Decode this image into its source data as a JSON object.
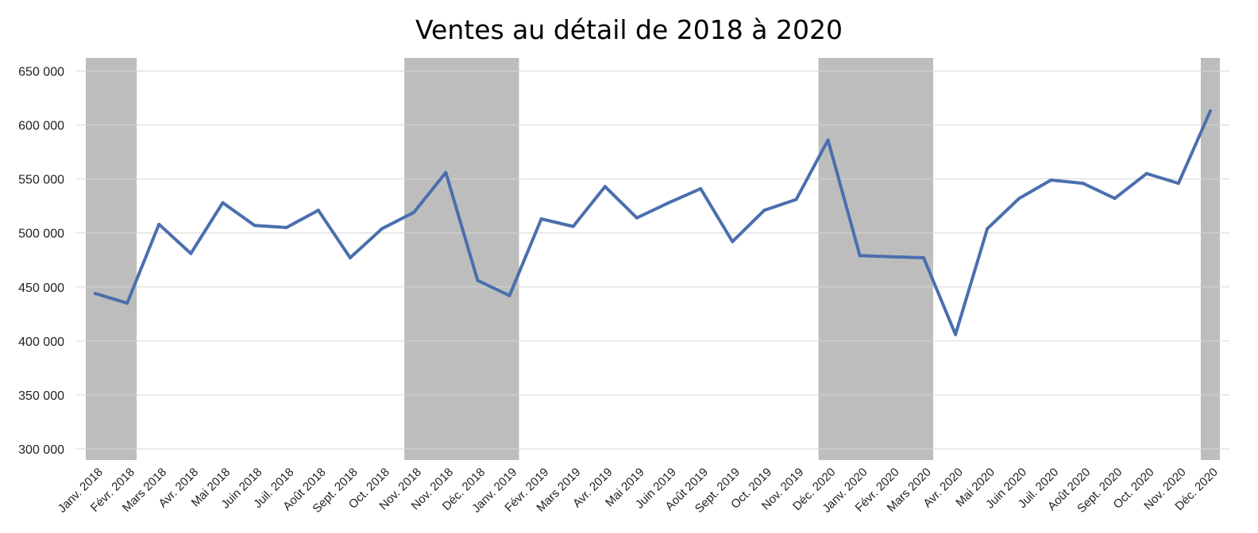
{
  "chart_data": {
    "type": "line",
    "title": "Ventes au détail de 2018 à 2020",
    "xlabel": "",
    "ylabel": "",
    "ylim": [
      300000,
      660000
    ],
    "y_ticks": [
      {
        "value": 300000,
        "label": "300 000"
      },
      {
        "value": 350000,
        "label": "350 000"
      },
      {
        "value": 400000,
        "label": "400 000"
      },
      {
        "value": 450000,
        "label": "450 000"
      },
      {
        "value": 500000,
        "label": "500 000"
      },
      {
        "value": 550000,
        "label": "550 000"
      },
      {
        "value": 600000,
        "label": "600 000"
      },
      {
        "value": 650000,
        "label": "650 000"
      }
    ],
    "grid": true,
    "legend": "none",
    "categories": [
      "Janv. 2018",
      "Févr. 2018",
      "Mars 2018",
      "Avr. 2018",
      "Mai 2018",
      "Juin 2018",
      "Juil. 2018",
      "Août 2018",
      "Sept. 2018",
      "Oct. 2018",
      "Nov. 2018",
      "Nov. 2018",
      "Déc. 2018",
      "Janv. 2019",
      "Févr. 2019",
      "Mars 2019",
      "Avr. 2019",
      "Mai 2019",
      "Juin 2019",
      "Août 2019",
      "Sept. 2019",
      "Oct. 2019",
      "Nov. 2019",
      "Déc. 2020",
      "Janv. 2020",
      "Févr. 2020",
      "Mars 2020",
      "Avr. 2020",
      "Mai 2020",
      "Juin 2020",
      "Juil. 2020",
      "Août 2020",
      "Sept. 2020",
      "Oct. 2020",
      "Nov. 2020",
      "Déc. 2020"
    ],
    "series": [
      {
        "values": [
          444000,
          435000,
          508000,
          481000,
          528000,
          507000,
          505000,
          521000,
          477000,
          504000,
          519000,
          556000,
          456000,
          442000,
          513000,
          506000,
          543000,
          514000,
          528000,
          541000,
          492000,
          521000,
          531000,
          586000,
          479000,
          478000,
          477000,
          406000,
          504000,
          532000,
          549000,
          546000,
          532000,
          555000,
          546000,
          613000
        ]
      }
    ],
    "shaded_ranges": [
      {
        "from": 0,
        "to": 1
      },
      {
        "from": 10,
        "to": 13
      },
      {
        "from": 23,
        "to": 26
      },
      {
        "from": 35,
        "to": 35
      }
    ],
    "colors": {
      "line": "#4a6fae",
      "shading": "#bdbdbd",
      "grid": "#d6d6d6"
    }
  }
}
